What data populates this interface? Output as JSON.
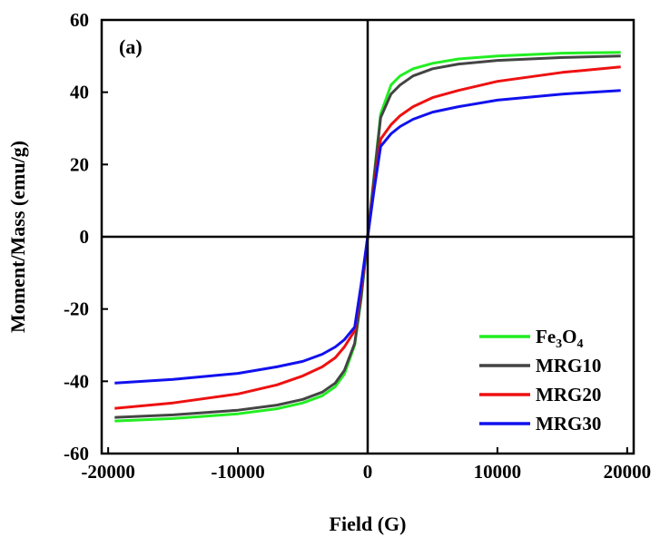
{
  "chart_data": {
    "type": "line",
    "title": "",
    "panel_label": "(a)",
    "xlabel": "Field (G)",
    "ylabel": "Moment/Mass (emu/g)",
    "xlim": [
      -20500,
      20500
    ],
    "ylim": [
      -60,
      60
    ],
    "xticks": [
      -20000,
      -10000,
      0,
      10000,
      20000
    ],
    "yticks": [
      -60,
      -40,
      -20,
      0,
      20,
      40,
      60
    ],
    "grid": false,
    "legend_position": "bottom-right",
    "legend_labels": [
      {
        "base": "Fe",
        "sub1": "3",
        "mid": "O",
        "sub2": "4"
      },
      {
        "text": "MRG10"
      },
      {
        "text": "MRG20"
      },
      {
        "text": "MRG30"
      }
    ],
    "series": [
      {
        "name": "Fe3O4",
        "color": "#22ee22",
        "x": [
          -19500,
          -15000,
          -10000,
          -7000,
          -5000,
          -3500,
          -2500,
          -1800,
          -1000,
          -500,
          0,
          500,
          1000,
          1800,
          2500,
          3500,
          5000,
          7000,
          10000,
          15000,
          19500
        ],
        "y": [
          -51,
          -50.3,
          -49,
          -47.6,
          -46,
          -44,
          -41.5,
          -38,
          -30,
          -17,
          0,
          17,
          34,
          42,
          44.5,
          46.5,
          48,
          49.2,
          50,
          50.8,
          51
        ]
      },
      {
        "name": "MRG10",
        "color": "#444444",
        "x": [
          -19500,
          -15000,
          -10000,
          -7000,
          -5000,
          -3500,
          -2500,
          -1800,
          -1000,
          -500,
          0,
          500,
          1000,
          1800,
          2500,
          3500,
          5000,
          7000,
          10000,
          15000,
          19500
        ],
        "y": [
          -50,
          -49.3,
          -48,
          -46.6,
          -45,
          -43,
          -40.5,
          -37,
          -29.5,
          -16.5,
          0,
          16.5,
          33,
          39.5,
          42,
          44.5,
          46.5,
          47.8,
          48.8,
          49.6,
          50
        ]
      },
      {
        "name": "MRG20",
        "color": "#ee1111",
        "x": [
          -19500,
          -15000,
          -10000,
          -7000,
          -5000,
          -3500,
          -2500,
          -1800,
          -1000,
          -500,
          0,
          500,
          1000,
          1800,
          2500,
          3500,
          5000,
          7000,
          10000,
          15000,
          19500
        ],
        "y": [
          -47.5,
          -46,
          -43.5,
          -41,
          -38.5,
          -36,
          -33.5,
          -30.5,
          -26,
          -14,
          0,
          14,
          27,
          31,
          33.5,
          36,
          38.5,
          40.5,
          43,
          45.5,
          47
        ]
      },
      {
        "name": "MRG30",
        "color": "#1111ee",
        "x": [
          -19500,
          -15000,
          -10000,
          -7000,
          -5000,
          -3500,
          -2500,
          -1800,
          -1000,
          -500,
          0,
          500,
          1000,
          1800,
          2500,
          3500,
          5000,
          7000,
          10000,
          15000,
          19500
        ],
        "y": [
          -40.5,
          -39.5,
          -37.8,
          -36,
          -34.5,
          -32.5,
          -30.5,
          -28.5,
          -25,
          -13,
          0,
          13,
          25,
          28.5,
          30.5,
          32.5,
          34.5,
          36,
          37.8,
          39.5,
          40.5
        ]
      }
    ]
  }
}
